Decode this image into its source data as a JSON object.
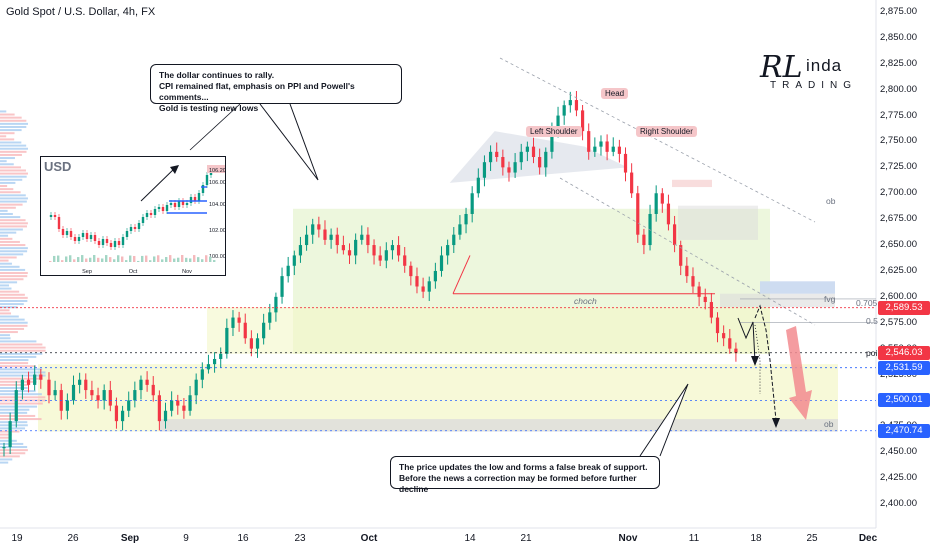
{
  "title": {
    "symbol": "Gold Spot / U.S. Dollar",
    "timeframe": "4h",
    "exchange": "FX"
  },
  "logo": {
    "big_letter": "RL",
    "name": "inda",
    "sub": "TRADING"
  },
  "callouts": {
    "top": [
      "The dollar continues to rally.",
      "CPI remained flat, emphasis on PPI and Powell's comments...",
      "Gold is testing new lows"
    ],
    "bottom": [
      "The price updates the low and forms a false break of support.",
      "Before the news a correction may be formed before further decline"
    ]
  },
  "pattern_labels": {
    "head": "Head",
    "left_shoulder": "Left Shoulder",
    "right_shoulder": "Right Shoulder",
    "choch": "choch"
  },
  "levels": {
    "fib_0705": "0.705",
    "fib_05": "0.5",
    "poi": "poi",
    "ob1": "ob",
    "fvg": "fvg",
    "ob2": "ob"
  },
  "price_badges": [
    {
      "value": "2,589.53",
      "price": 2589.53,
      "color": "#f23645"
    },
    {
      "value": "2,546.03",
      "price": 2546.03,
      "color": "#f23645"
    },
    {
      "value": "2,531.59",
      "price": 2531.59,
      "color": "#2962ff"
    },
    {
      "value": "2,500.01",
      "price": 2500.01,
      "color": "#2962ff"
    },
    {
      "value": "2,470.74",
      "price": 2470.74,
      "color": "#2962ff"
    }
  ],
  "inset": {
    "label": "USD",
    "y_ticks": [
      "106.20",
      "106.00",
      "104.00",
      "102.00",
      "100.00"
    ],
    "x_ticks": [
      "Sep",
      "Oct",
      "Nov"
    ]
  },
  "colors": {
    "up": "#089981",
    "down": "#f23645",
    "zone_green": "#e8f5d5",
    "zone_yellow": "#f3f7c8",
    "zone_red": "#f7d9d9",
    "zone_gray": "#dcdcdc"
  },
  "chart_data": {
    "type": "candlestick",
    "title": "Gold Spot / U.S. Dollar, 4h, FX",
    "y_ticks": [
      2400,
      2425,
      2450,
      2475,
      2500,
      2525,
      2550,
      2575,
      2600,
      2625,
      2650,
      2675,
      2700,
      2725,
      2750,
      2775,
      2800,
      2825,
      2850,
      2875
    ],
    "y_tick_labels": [
      "2,400.00",
      "2,425.00",
      "2,450.00",
      "2,475.00",
      "2,500.00",
      "2,525.00",
      "2,550.00",
      "2,575.00",
      "2,600.00",
      "2,625.00",
      "2,650.00",
      "2,675.00",
      "2,700.00",
      "2,725.00",
      "2,750.00",
      "2,775.00",
      "2,800.00",
      "2,825.00",
      "2,850.00",
      "2,875.00"
    ],
    "x_tick_labels": [
      "19",
      "26",
      "Sep",
      "9",
      "16",
      "23",
      "Oct",
      "14",
      "21",
      "Nov",
      "11",
      "18",
      "25",
      "Dec"
    ],
    "x_tick_bold": [
      false,
      false,
      true,
      false,
      false,
      false,
      true,
      false,
      false,
      true,
      false,
      false,
      false,
      true
    ],
    "ylim": [
      2390,
      2880
    ],
    "close_path": [
      [
        0,
        2455
      ],
      [
        3,
        2480
      ],
      [
        6,
        2510
      ],
      [
        9,
        2520
      ],
      [
        12,
        2515
      ],
      [
        15,
        2525
      ],
      [
        18,
        2520
      ],
      [
        22,
        2505
      ],
      [
        25,
        2510
      ],
      [
        28,
        2490
      ],
      [
        31,
        2500
      ],
      [
        34,
        2515
      ],
      [
        37,
        2520
      ],
      [
        40,
        2510
      ],
      [
        43,
        2505
      ],
      [
        46,
        2500
      ],
      [
        49,
        2510
      ],
      [
        52,
        2495
      ],
      [
        55,
        2480
      ],
      [
        58,
        2490
      ],
      [
        61,
        2500
      ],
      [
        64,
        2510
      ],
      [
        67,
        2520
      ],
      [
        70,
        2515
      ],
      [
        73,
        2505
      ],
      [
        76,
        2480
      ],
      [
        79,
        2490
      ],
      [
        82,
        2500
      ],
      [
        85,
        2495
      ],
      [
        88,
        2490
      ],
      [
        91,
        2505
      ],
      [
        94,
        2520
      ],
      [
        97,
        2530
      ],
      [
        100,
        2535
      ],
      [
        103,
        2540
      ],
      [
        106,
        2545
      ],
      [
        109,
        2570
      ],
      [
        112,
        2580
      ],
      [
        115,
        2575
      ],
      [
        118,
        2560
      ],
      [
        121,
        2550
      ],
      [
        124,
        2560
      ],
      [
        127,
        2575
      ],
      [
        130,
        2585
      ],
      [
        133,
        2600
      ],
      [
        136,
        2620
      ],
      [
        139,
        2630
      ],
      [
        142,
        2640
      ],
      [
        145,
        2650
      ],
      [
        148,
        2660
      ],
      [
        151,
        2670
      ],
      [
        154,
        2665
      ],
      [
        157,
        2655
      ],
      [
        160,
        2660
      ],
      [
        163,
        2650
      ],
      [
        166,
        2645
      ],
      [
        169,
        2640
      ],
      [
        172,
        2655
      ],
      [
        175,
        2660
      ],
      [
        178,
        2650
      ],
      [
        181,
        2640
      ],
      [
        184,
        2635
      ],
      [
        187,
        2645
      ],
      [
        190,
        2650
      ],
      [
        193,
        2640
      ],
      [
        196,
        2630
      ],
      [
        199,
        2620
      ],
      [
        202,
        2610
      ],
      [
        205,
        2605
      ],
      [
        208,
        2615
      ],
      [
        211,
        2625
      ],
      [
        214,
        2640
      ],
      [
        217,
        2650
      ],
      [
        220,
        2660
      ],
      [
        223,
        2670
      ],
      [
        226,
        2680
      ],
      [
        229,
        2700
      ],
      [
        232,
        2715
      ],
      [
        235,
        2730
      ],
      [
        238,
        2740
      ],
      [
        241,
        2735
      ],
      [
        244,
        2725
      ],
      [
        247,
        2720
      ],
      [
        250,
        2730
      ],
      [
        253,
        2740
      ],
      [
        256,
        2745
      ],
      [
        259,
        2735
      ],
      [
        262,
        2725
      ],
      [
        265,
        2740
      ],
      [
        268,
        2760
      ],
      [
        271,
        2775
      ],
      [
        274,
        2785
      ],
      [
        277,
        2790
      ],
      [
        280,
        2780
      ],
      [
        283,
        2760
      ],
      [
        286,
        2740
      ],
      [
        289,
        2745
      ],
      [
        292,
        2750
      ],
      [
        295,
        2740
      ],
      [
        298,
        2745
      ],
      [
        301,
        2738
      ],
      [
        304,
        2720
      ],
      [
        307,
        2700
      ],
      [
        310,
        2660
      ],
      [
        313,
        2650
      ],
      [
        316,
        2680
      ],
      [
        319,
        2700
      ],
      [
        322,
        2690
      ],
      [
        325,
        2670
      ],
      [
        328,
        2650
      ],
      [
        331,
        2630
      ],
      [
        334,
        2620
      ],
      [
        337,
        2610
      ],
      [
        340,
        2600
      ],
      [
        343,
        2595
      ],
      [
        346,
        2580
      ],
      [
        349,
        2565
      ],
      [
        352,
        2560
      ],
      [
        355,
        2550
      ],
      [
        358,
        2546
      ]
    ],
    "x_total": 360
  }
}
